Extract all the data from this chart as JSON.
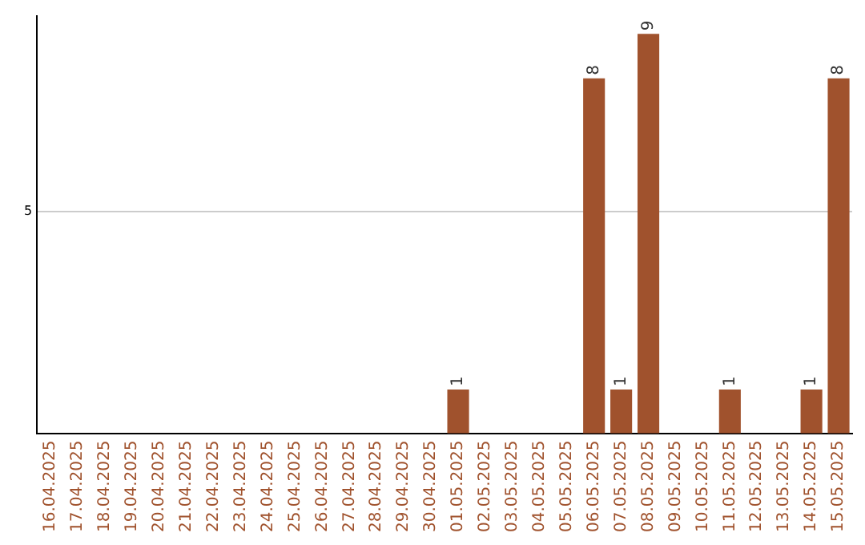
{
  "chart_data": {
    "type": "bar",
    "categories": [
      "16.04.2025",
      "17.04.2025",
      "18.04.2025",
      "19.04.2025",
      "20.04.2025",
      "21.04.2025",
      "22.04.2025",
      "23.04.2025",
      "24.04.2025",
      "25.04.2025",
      "26.04.2025",
      "27.04.2025",
      "28.04.2025",
      "29.04.2025",
      "30.04.2025",
      "01.05.2025",
      "02.05.2025",
      "03.05.2025",
      "04.05.2025",
      "05.05.2025",
      "06.05.2025",
      "07.05.2025",
      "08.05.2025",
      "09.05.2025",
      "10.05.2025",
      "11.05.2025",
      "12.05.2025",
      "13.05.2025",
      "14.05.2025",
      "15.05.2025"
    ],
    "values": [
      null,
      null,
      null,
      null,
      null,
      null,
      null,
      null,
      null,
      null,
      null,
      null,
      null,
      null,
      null,
      1,
      null,
      null,
      null,
      null,
      8,
      1,
      9,
      null,
      null,
      1,
      null,
      null,
      1,
      8
    ],
    "data_labels": true,
    "color": "#a0522d",
    "ylim": [
      0,
      9.4
    ],
    "yticks": [
      {
        "value": 0,
        "label": null
      },
      5
    ],
    "grid": "y",
    "legend": false
  }
}
